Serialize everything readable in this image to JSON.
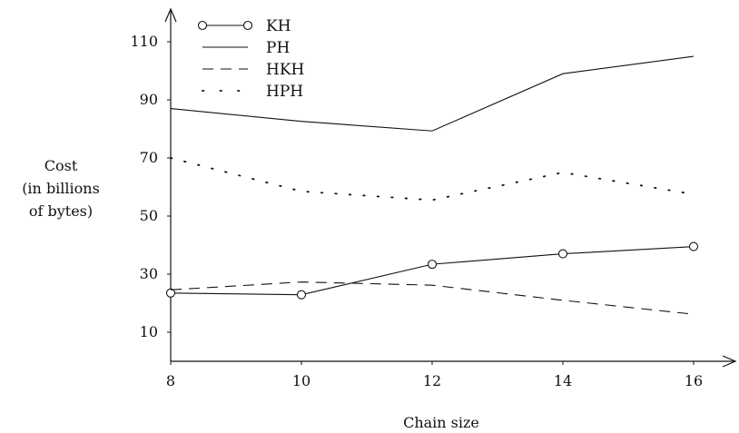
{
  "chart_data": {
    "type": "line",
    "title": "",
    "xlabel": "Chain size",
    "ylabel_lines": [
      "Cost",
      "(in billions",
      "of bytes)"
    ],
    "x": [
      8,
      10,
      12,
      14,
      16
    ],
    "xlim": [
      8,
      16
    ],
    "ylim": [
      0,
      120
    ],
    "xticks": [
      8,
      10,
      12,
      14,
      16
    ],
    "yticks": [
      10,
      30,
      50,
      70,
      90,
      110
    ],
    "grid": false,
    "legend_position": "top-left",
    "series": [
      {
        "name": "KH",
        "style": "solid-circles",
        "values": [
          23.5,
          22.9,
          33.4,
          37,
          39.5
        ]
      },
      {
        "name": "PH",
        "style": "solid",
        "values": [
          87,
          82.6,
          79.3,
          99,
          105
        ]
      },
      {
        "name": "HKH",
        "style": "dashed",
        "values": [
          24.6,
          27.3,
          26.2,
          21,
          16.2
        ]
      },
      {
        "name": "HPH",
        "style": "dotted",
        "values": [
          70,
          58.5,
          55.5,
          65,
          57.5
        ]
      }
    ]
  }
}
